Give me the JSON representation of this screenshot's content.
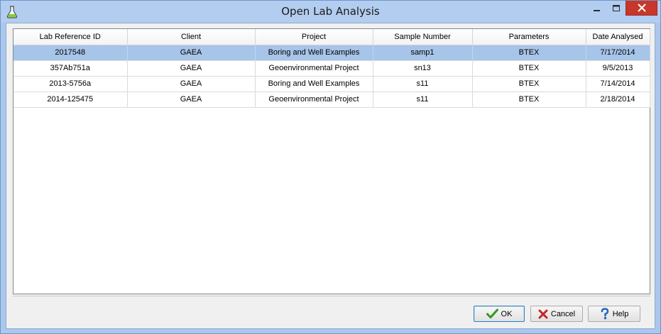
{
  "window": {
    "title": "Open Lab Analysis",
    "icon": "flask-icon"
  },
  "table": {
    "columns": [
      "Lab Reference ID",
      "Client",
      "Project",
      "Sample Number",
      "Parameters",
      "Date Analysed"
    ],
    "rows": [
      [
        "2017548",
        "GAEA",
        "Boring and Well Examples",
        "samp1",
        "BTEX",
        "7/17/2014"
      ],
      [
        "357Ab751a",
        "GAEA",
        "Geoenvironmental Project",
        "sn13",
        "BTEX",
        "9/5/2013"
      ],
      [
        "2013-5756a",
        "GAEA",
        "Boring and Well Examples",
        "s11",
        "BTEX",
        "7/14/2014"
      ],
      [
        "2014-125475",
        "GAEA",
        "Geoenvironmental Project",
        "s11",
        "BTEX",
        "2/18/2014"
      ]
    ],
    "selected_row": 0
  },
  "buttons": {
    "ok_label": "OK",
    "cancel_label": "Cancel",
    "help_label": "Help"
  },
  "colors": {
    "selection": "#a7c4e9",
    "ok_check": "#2f9a1f",
    "cancel_x": "#c0282a",
    "help_q": "#2467c4"
  }
}
